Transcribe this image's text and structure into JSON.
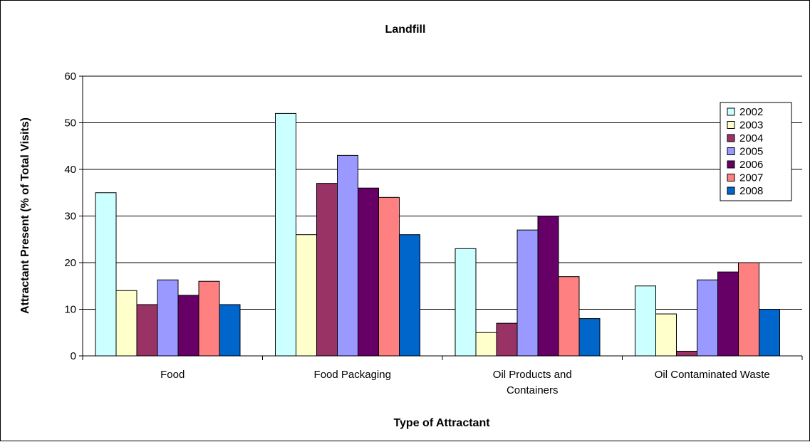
{
  "chart_data": {
    "type": "bar",
    "title": "Landfill",
    "xlabel": "Type of Attractant",
    "ylabel": "Attractant Present (% of Total Visits)",
    "categories": [
      "Food",
      "Food Packaging",
      "Oil Products and Containers",
      "Oil Contaminated Waste"
    ],
    "category_lines": [
      [
        "Food"
      ],
      [
        "Food Packaging"
      ],
      [
        "Oil Products and",
        "Containers"
      ],
      [
        "Oil Contaminated Waste"
      ]
    ],
    "ylim": [
      0,
      60
    ],
    "yticks": [
      "0",
      "10",
      "20",
      "30",
      "40",
      "50",
      "60"
    ],
    "grid": true,
    "legend_position": "top-right",
    "series": [
      {
        "name": "2002",
        "color": "#ccffff",
        "values": [
          35,
          52,
          23,
          15
        ]
      },
      {
        "name": "2003",
        "color": "#ffffcc",
        "values": [
          14,
          26,
          5,
          9
        ]
      },
      {
        "name": "2004",
        "color": "#993366",
        "values": [
          11,
          37,
          7,
          1
        ]
      },
      {
        "name": "2005",
        "color": "#9999ff",
        "values": [
          16.3,
          43,
          27,
          16.3
        ]
      },
      {
        "name": "2006",
        "color": "#660066",
        "values": [
          13,
          36,
          30,
          18
        ]
      },
      {
        "name": "2007",
        "color": "#ff8080",
        "values": [
          16,
          34,
          17,
          20
        ]
      },
      {
        "name": "2008",
        "color": "#0066cc",
        "values": [
          11,
          26,
          8,
          10
        ]
      }
    ]
  }
}
